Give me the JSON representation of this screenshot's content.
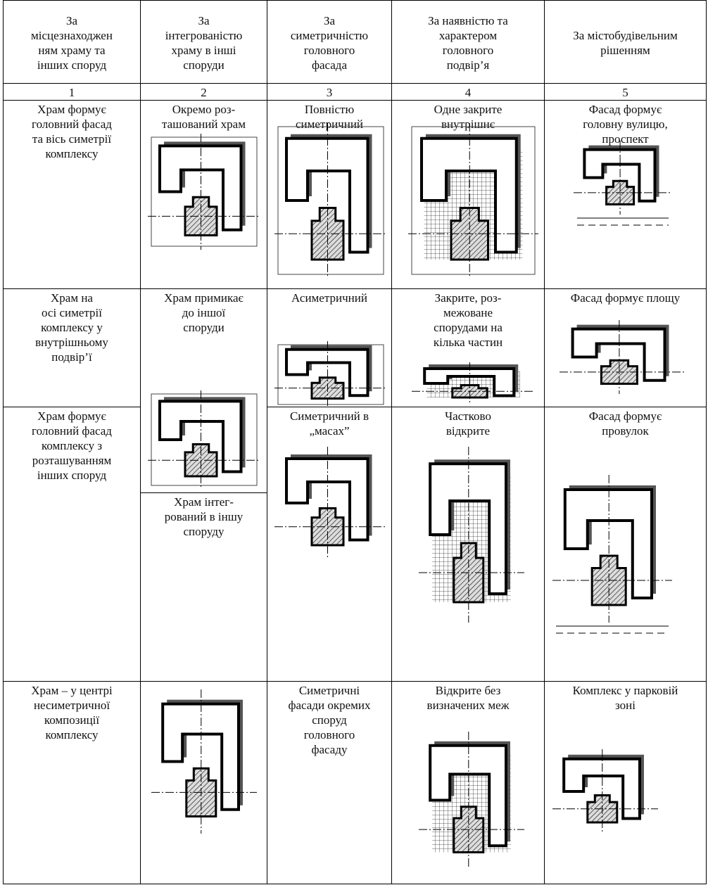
{
  "header": {
    "columns": [
      "За\nмісцезнаходжен\nням храму та\nінших споруд",
      "За\nінтегрованістю\nхраму в інші\nспоруди",
      "За\nсиметричністю\nголовного\nфасада",
      "За наявністю та\nхарактером\nголовного\nподвір’я",
      "За містобудівельним\nрішенням"
    ],
    "numbers": [
      "1",
      "2",
      "3",
      "4",
      "5"
    ]
  },
  "columns": [
    {
      "cells": [
        "Храм формує\nголовний фасад\nта вісь симетрії\nкомплексу",
        "Храм на\nосі симетрії\nкомплексу  у\nвнутрішньому\nподвір’ї",
        "Храм формує\nголовний фасад\nкомплексу з\nрозташуванням\nінших споруд",
        "Храм – у центрі\nнесиметричної\nкомпозиції\nкомплексу"
      ]
    },
    {
      "cells": [
        "Окремо роз-\nташований храм",
        "Храм примикає\nдо іншої\nспоруди",
        "Храм  інтег-\nрований в іншу\nспоруду"
      ]
    },
    {
      "cells": [
        "Повністю\nсиметричний",
        "Асиметричний",
        "Симетричний в\n„масах”",
        "Симетричні\nфасади окремих\nспоруд\nголовного\nфасаду"
      ]
    },
    {
      "cells": [
        "Одне закрите\nвнутрішнє\nподвір’я",
        "Закрите, роз-\nмежоване\nспорудами на\nкілька частин",
        "Частково\nвідкрите",
        "Відкрите без\nвизначених меж"
      ]
    },
    {
      "cells": [
        "Фасад формує\nголовну вулицю,\nпроспект",
        "Фасад формує площу",
        "Фасад формує\nпровулок",
        "Комплекс у парковій\nзоні"
      ]
    }
  ]
}
